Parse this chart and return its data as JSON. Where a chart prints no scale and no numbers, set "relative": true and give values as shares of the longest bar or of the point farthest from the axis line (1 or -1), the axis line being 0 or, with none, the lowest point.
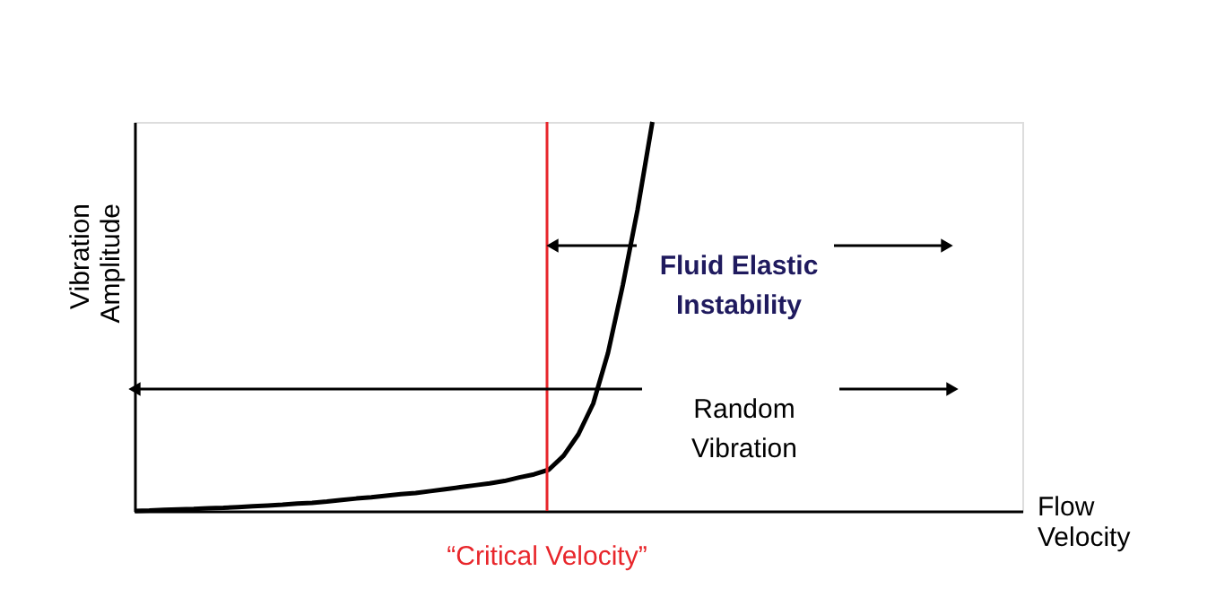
{
  "chart_data": {
    "type": "line",
    "relative": true,
    "xlabel": "Flow\nVelocity",
    "ylabel": "Vibration\nAmplitude",
    "categories": [
      null,
      null,
      null,
      null,
      null,
      null,
      null,
      null,
      null,
      null,
      null,
      null,
      null,
      null,
      null,
      null,
      null,
      null,
      null,
      null,
      null,
      null,
      null,
      null,
      null,
      null,
      null,
      null,
      null,
      null,
      null,
      null,
      null,
      null,
      null,
      null,
      null,
      null,
      null,
      null,
      null,
      null,
      null,
      null,
      null,
      null,
      null,
      null,
      null,
      null,
      null,
      null,
      null,
      null,
      null,
      null,
      null,
      null,
      null,
      null,
      null
    ],
    "series": [
      {
        "color": "#000000",
        "values": [
          0,
          0.001,
          0.003,
          0.004,
          0.005,
          0.007,
          0.008,
          0.01,
          0.012,
          0.014,
          0.016,
          0.019,
          0.021,
          0.024,
          0.028,
          0.032,
          0.035,
          0.039,
          0.043,
          0.046,
          0.051,
          0.056,
          0.061,
          0.066,
          0.071,
          0.077,
          0.086,
          0.094,
          0.106,
          0.142,
          0.197,
          0.276,
          0.406,
          0.58,
          0.775,
          1,
          null,
          null,
          null,
          null,
          null,
          null,
          null,
          null,
          null,
          null,
          null,
          null,
          null,
          null,
          null,
          null,
          null,
          null,
          null,
          null,
          null,
          null,
          null,
          null,
          null
        ]
      }
    ],
    "tick_labels": false,
    "grid": false,
    "marker": "none",
    "line_style": "solid",
    "annotations": [
      "“Critical Velocity”",
      "Fluid Elastic\nInstability",
      "Random\nVibration"
    ]
  }
}
